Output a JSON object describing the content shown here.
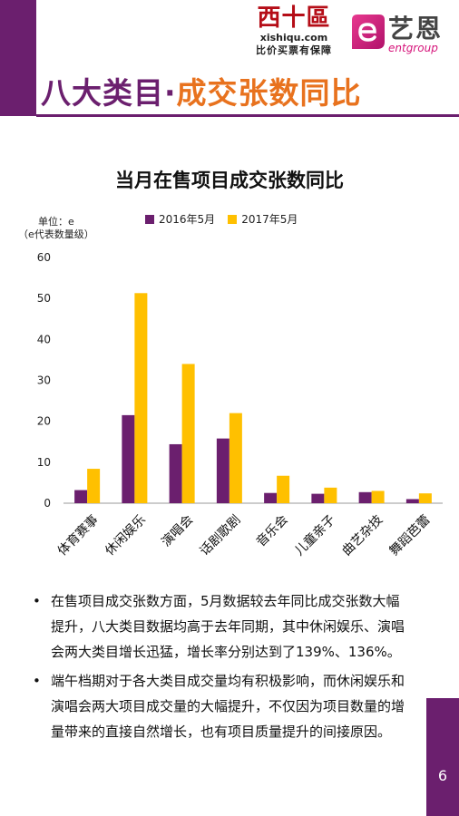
{
  "header": {
    "title_part1": "八大类目·",
    "title_part2": "成交张数同比",
    "logo_xishiqu": {
      "name": "西十區",
      "domain": "xishiqu.com",
      "slogan": "比价买票有保障"
    },
    "logo_entgroup": {
      "name": "艺恩",
      "sub": "entgroup"
    }
  },
  "colors": {
    "purple": "#6b1f6e",
    "gold": "#ffc000",
    "orange": "#e8721e",
    "brand_red": "#b50d17"
  },
  "chart_data": {
    "type": "bar",
    "title": "当月在售项目成交张数同比",
    "unit_line1": "单位：e",
    "unit_line2": "（e代表数量级）",
    "categories": [
      "体育赛事",
      "休闲娱乐",
      "演唱会",
      "话剧歌剧",
      "音乐会",
      "儿童亲子",
      "曲艺杂技",
      "舞蹈芭蕾"
    ],
    "series": [
      {
        "name": "2016年5月",
        "color": "#6b1f6e",
        "values": [
          3.2,
          21.5,
          14.4,
          15.8,
          2.5,
          2.3,
          2.7,
          1.0
        ]
      },
      {
        "name": "2017年5月",
        "color": "#ffc000",
        "values": [
          8.4,
          51.3,
          34.0,
          22.0,
          6.7,
          3.8,
          3.0,
          2.4
        ]
      }
    ],
    "ylim": [
      0,
      60
    ],
    "yticks": [
      0,
      10,
      20,
      30,
      40,
      50,
      60
    ],
    "grid": false,
    "legend": "top"
  },
  "bullets": [
    "在售项目成交张数方面，5月数据较去年同比成交张数大幅提升，八大类目数据均高于去年同期，其中休闲娱乐、演唱会两大类目增长迅猛，增长率分别达到了139%、136%。",
    "端午档期对于各大类目成交量均有积极影响，而休闲娱乐和演唱会两大项目成交量的大幅提升，不仅因为项目数量的增量带来的直接自然增长，也有项目质量提升的间接原因。"
  ],
  "bullet_symbol": "•",
  "page_number": "6"
}
